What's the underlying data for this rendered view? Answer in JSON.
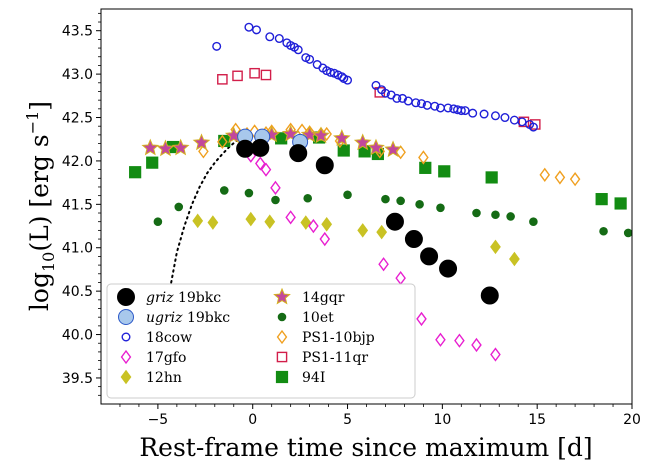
{
  "chart_data": {
    "type": "scatter",
    "xlabel": "Rest-frame time since maximum [d]",
    "ylabel_main": "log",
    "ylabel_sub": "10",
    "ylabel_rest": "(L) [erg s",
    "ylabel_sup": "−1",
    "ylabel_end": "]",
    "xlim": [
      -8,
      20
    ],
    "ylim": [
      39.2,
      43.75
    ],
    "xticks": [
      -5,
      0,
      5,
      10,
      15,
      20
    ],
    "xtick_labels": [
      "−5",
      "0",
      "5",
      "10",
      "15",
      "20"
    ],
    "yticks": [
      39.5,
      40.0,
      40.5,
      41.0,
      41.5,
      42.0,
      42.5,
      43.0,
      43.5
    ],
    "ytick_labels": [
      "39.5",
      "40.0",
      "40.5",
      "41.0",
      "41.5",
      "42.0",
      "42.5",
      "43.0",
      "43.5"
    ],
    "legend_placement": "lower-left",
    "legend_columns": 2,
    "series": [
      {
        "name": "griz 19bkc",
        "legend_italic": "griz",
        "legend_rest": " 19bkc",
        "marker": "circle",
        "fill": "#000000",
        "stroke": "#000000",
        "size": 8.5,
        "x": [
          -0.4,
          0.4,
          2.4,
          3.8,
          7.5,
          8.5,
          9.3,
          10.3,
          12.5
        ],
        "y": [
          42.14,
          42.15,
          42.09,
          41.95,
          41.3,
          41.1,
          40.9,
          40.76,
          40.45
        ]
      },
      {
        "name": "ugriz 19bkc",
        "legend_italic": "ugriz",
        "legend_rest": " 19bkc",
        "marker": "circle",
        "fill": "#a8c8ec",
        "stroke": "#2c59c8",
        "size": 7.5,
        "x": [
          -0.4,
          0.5,
          2.5
        ],
        "y": [
          42.28,
          42.28,
          42.22
        ]
      },
      {
        "name": "18cow",
        "marker": "circle",
        "fill": "none",
        "stroke": "#1f1fd8",
        "size": 3.8,
        "x": [
          -1.9,
          -0.2,
          0.2,
          0.9,
          1.4,
          1.8,
          2.0,
          2.2,
          2.4,
          2.8,
          3.0,
          3.4,
          3.7,
          3.9,
          4.1,
          4.3,
          4.5,
          4.7,
          4.8,
          5.0,
          6.5,
          6.8,
          7.0,
          7.3,
          7.6,
          7.9,
          8.2,
          8.6,
          8.9,
          9.2,
          9.6,
          9.9,
          10.3,
          10.6,
          10.8,
          11.0,
          11.2,
          11.6,
          12.2,
          12.8,
          13.3,
          13.8,
          14.2,
          14.6,
          14.8
        ],
        "y": [
          43.32,
          43.54,
          43.51,
          43.43,
          43.41,
          43.36,
          43.33,
          43.31,
          43.28,
          43.19,
          43.17,
          43.11,
          43.07,
          43.04,
          43.02,
          43.01,
          42.99,
          42.97,
          42.95,
          42.93,
          42.87,
          42.82,
          42.78,
          42.76,
          42.72,
          42.72,
          42.69,
          42.67,
          42.66,
          42.64,
          42.63,
          42.61,
          42.61,
          42.6,
          42.59,
          42.58,
          42.58,
          42.55,
          42.54,
          42.52,
          42.5,
          42.47,
          42.45,
          42.42,
          42.39
        ]
      },
      {
        "name": "17gfo",
        "marker": "diamond",
        "fill": "none",
        "stroke": "#e81fd0",
        "size": 5.2,
        "x": [
          -0.1,
          0.4,
          0.7,
          1.2,
          2.0,
          3.2,
          3.8,
          6.9,
          7.8,
          8.9,
          9.9,
          10.9,
          11.8,
          12.8
        ],
        "y": [
          42.06,
          41.97,
          41.9,
          41.69,
          41.35,
          41.25,
          41.1,
          40.81,
          40.65,
          40.18,
          39.94,
          39.93,
          39.88,
          39.77
        ]
      },
      {
        "name": "12hn",
        "marker": "diamond",
        "fill": "#c9c224",
        "stroke": "#c9c224",
        "size": 5.6,
        "x": [
          -2.9,
          -2.1,
          -0.1,
          0.9,
          2.8,
          3.9,
          5.8,
          6.8,
          12.8,
          13.8
        ],
        "y": [
          41.31,
          41.29,
          41.33,
          41.3,
          41.29,
          41.27,
          41.2,
          41.18,
          41.01,
          40.87
        ]
      },
      {
        "name": "14gqr",
        "marker": "star",
        "fill": "#c2489c",
        "stroke": "#d4b020",
        "size": 8,
        "x": [
          -5.4,
          -4.6,
          -3.8,
          -2.7,
          -1.0,
          1.0,
          2.0,
          3.0,
          3.6,
          4.7,
          5.8,
          6.5,
          7.4
        ],
        "y": [
          42.15,
          42.14,
          42.15,
          42.21,
          42.29,
          42.3,
          42.31,
          42.3,
          42.29,
          42.26,
          42.21,
          42.15,
          42.13
        ]
      },
      {
        "name": "10et",
        "marker": "circle",
        "fill": "#156b15",
        "stroke": "#156b15",
        "size": 3.8,
        "x": [
          -5.0,
          -3.9,
          -1.5,
          -0.2,
          1.2,
          2.9,
          5.0,
          7.0,
          7.8,
          8.8,
          9.9,
          11.8,
          12.8,
          13.6,
          14.8,
          18.5,
          19.8
        ],
        "y": [
          41.3,
          41.47,
          41.66,
          41.63,
          41.55,
          41.57,
          41.61,
          41.56,
          41.54,
          41.5,
          41.46,
          41.4,
          41.38,
          41.36,
          41.3,
          41.19,
          41.17
        ]
      },
      {
        "name": "PS1-10bjp",
        "marker": "diamond",
        "fill": "none",
        "stroke": "#f0a020",
        "size": 5.2,
        "x": [
          -2.6,
          -1.6,
          -0.9,
          -0.3,
          0.1,
          0.7,
          1.0,
          2.0,
          2.6,
          3.0,
          3.6,
          3.9,
          4.6,
          6.7,
          7.8,
          9.0,
          15.4,
          16.2,
          17.0
        ],
        "y": [
          42.11,
          42.22,
          42.36,
          42.31,
          42.34,
          42.32,
          42.34,
          42.36,
          42.35,
          42.33,
          42.31,
          42.31,
          42.23,
          42.11,
          42.1,
          42.04,
          41.84,
          41.81,
          41.79
        ]
      },
      {
        "name": "PS1-11qr",
        "marker": "square",
        "fill": "none",
        "stroke": "#d21e4a",
        "size": 4.6,
        "x": [
          -1.6,
          -0.8,
          0.1,
          0.7,
          6.7,
          14.3,
          14.9
        ],
        "y": [
          42.94,
          42.98,
          43.01,
          42.99,
          42.79,
          42.45,
          42.42
        ]
      },
      {
        "name": "94I",
        "marker": "square",
        "fill": "#138c13",
        "stroke": "#138c13",
        "size": 5.6,
        "x": [
          -6.2,
          -5.3,
          -4.2,
          -1.5,
          1.5,
          3.5,
          4.8,
          5.9,
          6.6,
          9.1,
          10.1,
          12.6,
          18.4,
          19.4
        ],
        "y": [
          41.87,
          41.98,
          42.16,
          42.23,
          42.26,
          42.27,
          42.12,
          42.11,
          42.08,
          41.92,
          41.88,
          41.81,
          41.56,
          41.51
        ]
      }
    ],
    "model_curve": {
      "style": "dotted",
      "color": "#000000",
      "x": [
        -4.3,
        -4.0,
        -3.6,
        -3.2,
        -2.8,
        -2.4,
        -2.0,
        -1.6,
        -1.2,
        -0.8
      ],
      "y": [
        40.6,
        40.95,
        41.25,
        41.5,
        41.7,
        41.86,
        41.98,
        42.08,
        42.17,
        42.24
      ]
    }
  }
}
